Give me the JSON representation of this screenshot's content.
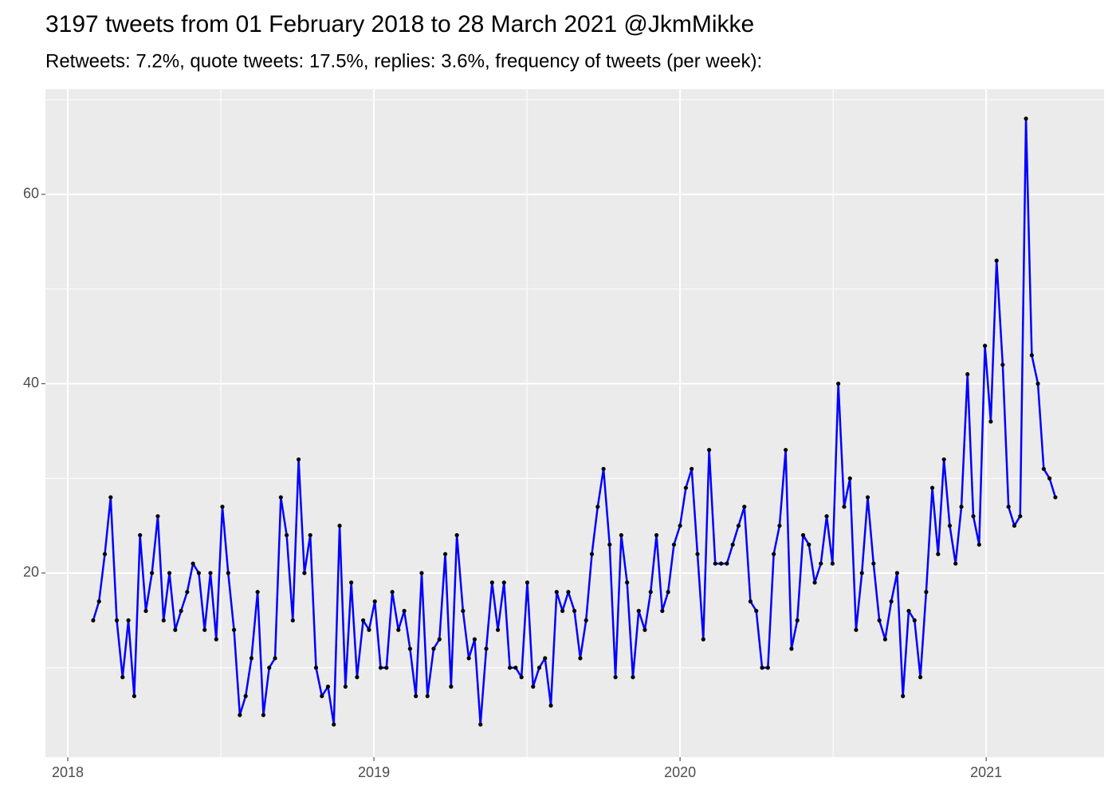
{
  "chart_data": {
    "type": "line",
    "title": "3197 tweets from 01 February 2018 to 28 March 2021 @JkmMikke",
    "subtitle": "Retweets: 7.2%, quote tweets: 17.5%, replies: 3.6%, frequency of tweets (per week):",
    "x": [
      2018.083,
      2018.102,
      2018.121,
      2018.14,
      2018.16,
      2018.179,
      2018.198,
      2018.217,
      2018.236,
      2018.255,
      2018.275,
      2018.294,
      2018.313,
      2018.332,
      2018.351,
      2018.37,
      2018.39,
      2018.409,
      2018.428,
      2018.447,
      2018.466,
      2018.485,
      2018.505,
      2018.524,
      2018.543,
      2018.562,
      2018.581,
      2018.6,
      2018.62,
      2018.639,
      2018.658,
      2018.677,
      2018.696,
      2018.715,
      2018.735,
      2018.754,
      2018.773,
      2018.792,
      2018.811,
      2018.83,
      2018.85,
      2018.869,
      2018.888,
      2018.907,
      2018.926,
      2018.945,
      2018.965,
      2018.984,
      2019.003,
      2019.022,
      2019.041,
      2019.06,
      2019.08,
      2019.099,
      2019.118,
      2019.137,
      2019.156,
      2019.175,
      2019.195,
      2019.214,
      2019.233,
      2019.252,
      2019.271,
      2019.291,
      2019.31,
      2019.329,
      2019.348,
      2019.367,
      2019.386,
      2019.405,
      2019.425,
      2019.444,
      2019.463,
      2019.482,
      2019.501,
      2019.52,
      2019.54,
      2019.559,
      2019.578,
      2019.597,
      2019.616,
      2019.635,
      2019.655,
      2019.674,
      2019.693,
      2019.712,
      2019.731,
      2019.75,
      2019.77,
      2019.789,
      2019.808,
      2019.827,
      2019.846,
      2019.865,
      2019.885,
      2019.904,
      2019.923,
      2019.942,
      2019.961,
      2019.98,
      2020.0,
      2020.019,
      2020.038,
      2020.057,
      2020.076,
      2020.095,
      2020.115,
      2020.134,
      2020.153,
      2020.172,
      2020.191,
      2020.21,
      2020.23,
      2020.249,
      2020.268,
      2020.287,
      2020.306,
      2020.325,
      2020.345,
      2020.364,
      2020.383,
      2020.402,
      2020.421,
      2020.44,
      2020.46,
      2020.479,
      2020.498,
      2020.517,
      2020.536,
      2020.555,
      2020.575,
      2020.594,
      2020.613,
      2020.632,
      2020.651,
      2020.67,
      2020.69,
      2020.709,
      2020.728,
      2020.747,
      2020.766,
      2020.785,
      2020.804,
      2020.824,
      2020.843,
      2020.862,
      2020.881,
      2020.9,
      2020.919,
      2020.939,
      2020.958,
      2020.977,
      2020.996,
      2021.015,
      2021.034,
      2021.054,
      2021.073,
      2021.092,
      2021.111,
      2021.13,
      2021.149,
      2021.169,
      2021.188,
      2021.207,
      2021.226
    ],
    "values": [
      15,
      17,
      22,
      28,
      15,
      9,
      15,
      7,
      24,
      16,
      20,
      26,
      15,
      20,
      14,
      16,
      18,
      21,
      20,
      14,
      20,
      13,
      27,
      20,
      14,
      5,
      7,
      11,
      18,
      5,
      10,
      11,
      28,
      24,
      15,
      32,
      20,
      24,
      10,
      7,
      8,
      4,
      25,
      8,
      19,
      9,
      15,
      14,
      17,
      10,
      10,
      18,
      14,
      16,
      12,
      7,
      20,
      7,
      12,
      13,
      22,
      8,
      24,
      16,
      11,
      13,
      4,
      12,
      19,
      14,
      19,
      10,
      10,
      9,
      19,
      8,
      10,
      11,
      6,
      18,
      16,
      18,
      16,
      11,
      15,
      22,
      27,
      31,
      23,
      9,
      24,
      19,
      9,
      16,
      14,
      18,
      24,
      16,
      18,
      23,
      25,
      29,
      31,
      22,
      13,
      33,
      21,
      21,
      21,
      23,
      25,
      27,
      17,
      16,
      10,
      10,
      22,
      25,
      33,
      12,
      15,
      24,
      23,
      19,
      21,
      26,
      21,
      40,
      27,
      30,
      14,
      20,
      28,
      21,
      15,
      13,
      17,
      20,
      7,
      16,
      15,
      9,
      18,
      29,
      22,
      32,
      25,
      21,
      27,
      41,
      26,
      23,
      44,
      36,
      53,
      42,
      27,
      25,
      26,
      68,
      43,
      40,
      31,
      30,
      28
    ],
    "color": "#0000ff",
    "point_color": "#000000",
    "xlim": [
      2017.927,
      2021.385
    ],
    "xticks": [
      2018,
      2019,
      2020,
      2021
    ],
    "x_minor_ticks": [
      2018.5,
      2019.5,
      2020.5
    ],
    "ylim": [
      0.55,
      71.1
    ],
    "yticks": [
      20,
      40,
      60
    ],
    "y_minor_ticks": [
      10,
      30,
      50,
      70
    ],
    "grid": true,
    "background": "#ebebeb"
  }
}
